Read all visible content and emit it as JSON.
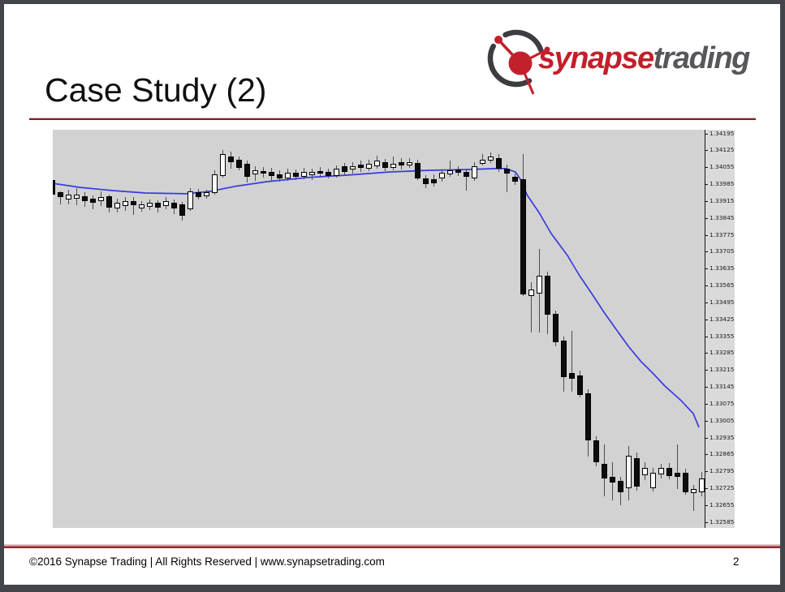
{
  "slide": {
    "title": "Case Study (2)",
    "footer": "©2016 Synapse Trading | All Rights Reserved | www.synapsetrading.com",
    "page_number": "2"
  },
  "logo": {
    "text_primary": "synapse",
    "text_secondary": "trading",
    "primary_color": "#c2202b",
    "secondary_color": "#55575a",
    "ring_color": "#3b3d40"
  },
  "colors": {
    "title_rule_red": "#8e1a1a",
    "footer_rule_red": "#7e1416",
    "plot_background": "#d2d2d2",
    "axis_background": "#dadada",
    "bull_candle": "#fbfbfb",
    "bear_candle": "#0c0c0c",
    "wick": "#4d4d4d",
    "moving_average": "#3a3ae0",
    "border_frame": "#42464b"
  },
  "chart_data": {
    "type": "candlestick",
    "grid": false,
    "ylim": [
      1.32562,
      1.34212
    ],
    "y_axis_ticks": [
      1.34195,
      1.34125,
      1.34055,
      1.33985,
      1.33915,
      1.33845,
      1.33775,
      1.33705,
      1.33635,
      1.33565,
      1.33495,
      1.33425,
      1.33355,
      1.33285,
      1.33215,
      1.33145,
      1.33075,
      1.33005,
      1.32935,
      1.32865,
      1.32795,
      1.32725,
      1.32655,
      1.32585
    ],
    "y_tick_format_decimals": 5,
    "series": [
      {
        "name": "price-candles",
        "type": "candlestick",
        "candles_ohlc": [
          [
            1.34004,
            1.3401,
            1.3392,
            1.33943
          ],
          [
            1.33953,
            1.33956,
            1.33903,
            1.33933
          ],
          [
            1.33923,
            1.33963,
            1.33903,
            1.33943
          ],
          [
            1.33926,
            1.3397,
            1.339,
            1.33943
          ],
          [
            1.33936,
            1.33953,
            1.33893,
            1.33916
          ],
          [
            1.33926,
            1.3394,
            1.33883,
            1.3391
          ],
          [
            1.33916,
            1.33957,
            1.33896,
            1.33933
          ],
          [
            1.33936,
            1.33943,
            1.33869,
            1.33889
          ],
          [
            1.33886,
            1.33926,
            1.33869,
            1.3391
          ],
          [
            1.33896,
            1.33933,
            1.33876,
            1.33916
          ],
          [
            1.33916,
            1.33933,
            1.33859,
            1.339
          ],
          [
            1.33886,
            1.33916,
            1.33873,
            1.33903
          ],
          [
            1.33893,
            1.33923,
            1.33879,
            1.3391
          ],
          [
            1.3391,
            1.3392,
            1.33869,
            1.33889
          ],
          [
            1.33896,
            1.33933,
            1.33883,
            1.33916
          ],
          [
            1.3391,
            1.33923,
            1.33862,
            1.33886
          ],
          [
            1.33903,
            1.33913,
            1.33836,
            1.33856
          ],
          [
            1.33883,
            1.3397,
            1.33876,
            1.33957
          ],
          [
            1.33953,
            1.33967,
            1.33923,
            1.33933
          ],
          [
            1.33936,
            1.33963,
            1.33926,
            1.33953
          ],
          [
            1.3395,
            1.34044,
            1.33943,
            1.34027
          ],
          [
            1.3402,
            1.34128,
            1.34014,
            1.34111
          ],
          [
            1.34101,
            1.34121,
            1.34051,
            1.34078
          ],
          [
            1.34088,
            1.34101,
            1.34044,
            1.34054
          ],
          [
            1.34071,
            1.34084,
            1.33994,
            1.34017
          ],
          [
            1.34027,
            1.34061,
            1.34,
            1.34044
          ],
          [
            1.34041,
            1.34057,
            1.34014,
            1.34031
          ],
          [
            1.34037,
            1.34054,
            1.33997,
            1.3402
          ],
          [
            1.34027,
            1.34044,
            1.33997,
            1.3401
          ],
          [
            1.3401,
            1.34051,
            1.34,
            1.34034
          ],
          [
            1.34034,
            1.34047,
            1.34004,
            1.34017
          ],
          [
            1.34017,
            1.34054,
            1.34007,
            1.34037
          ],
          [
            1.34024,
            1.34051,
            1.34004,
            1.34037
          ],
          [
            1.34041,
            1.34057,
            1.34014,
            1.34031
          ],
          [
            1.34037,
            1.34051,
            1.3401,
            1.3402
          ],
          [
            1.3402,
            1.34064,
            1.34014,
            1.34051
          ],
          [
            1.34061,
            1.34074,
            1.34024,
            1.34037
          ],
          [
            1.34047,
            1.34078,
            1.34031,
            1.34061
          ],
          [
            1.34068,
            1.34084,
            1.34037,
            1.34054
          ],
          [
            1.34051,
            1.34088,
            1.34041,
            1.34071
          ],
          [
            1.34061,
            1.34104,
            1.34051,
            1.34084
          ],
          [
            1.34078,
            1.34091,
            1.34041,
            1.34054
          ],
          [
            1.34054,
            1.34101,
            1.34044,
            1.34071
          ],
          [
            1.34078,
            1.34094,
            1.34047,
            1.34064
          ],
          [
            1.34064,
            1.34094,
            1.34054,
            1.34078
          ],
          [
            1.34074,
            1.34088,
            1.34004,
            1.3401
          ],
          [
            1.3401,
            1.34024,
            1.3397,
            1.33987
          ],
          [
            1.34007,
            1.34027,
            1.33977,
            1.3399
          ],
          [
            1.3401,
            1.34047,
            1.33997,
            1.34034
          ],
          [
            1.34027,
            1.34084,
            1.34017,
            1.34044
          ],
          [
            1.34047,
            1.34061,
            1.3402,
            1.34034
          ],
          [
            1.34037,
            1.34051,
            1.3396,
            1.34017
          ],
          [
            1.3401,
            1.34078,
            1.34,
            1.34061
          ],
          [
            1.34071,
            1.34111,
            1.34064,
            1.34088
          ],
          [
            1.34084,
            1.34118,
            1.34074,
            1.34101
          ],
          [
            1.34094,
            1.34111,
            1.34037,
            1.34051
          ],
          [
            1.34051,
            1.34068,
            1.33953,
            1.34031
          ],
          [
            1.34017,
            1.34031,
            1.33984,
            1.33997
          ],
          [
            1.34007,
            1.34111,
            1.33523,
            1.3353
          ],
          [
            1.33523,
            1.3358,
            1.33372,
            1.3355
          ],
          [
            1.33533,
            1.33718,
            1.33372,
            1.33607
          ],
          [
            1.33607,
            1.33624,
            1.33365,
            1.33446
          ],
          [
            1.33449,
            1.33463,
            1.33315,
            1.33332
          ],
          [
            1.33338,
            1.33355,
            1.33127,
            1.33187
          ],
          [
            1.33204,
            1.33379,
            1.33127,
            1.3318
          ],
          [
            1.33194,
            1.33214,
            1.33103,
            1.33113
          ],
          [
            1.3312,
            1.33137,
            1.32858,
            1.32925
          ],
          [
            1.32925,
            1.32942,
            1.32818,
            1.32834
          ],
          [
            1.32828,
            1.32908,
            1.32693,
            1.32767
          ],
          [
            1.32774,
            1.32834,
            1.32676,
            1.3275
          ],
          [
            1.32757,
            1.32774,
            1.32656,
            1.3271
          ],
          [
            1.32727,
            1.32901,
            1.32676,
            1.32861
          ],
          [
            1.32851,
            1.32874,
            1.32716,
            1.32734
          ],
          [
            1.32781,
            1.32834,
            1.32761,
            1.32811
          ],
          [
            1.32727,
            1.32811,
            1.32713,
            1.32791
          ],
          [
            1.32784,
            1.32828,
            1.32767,
            1.32811
          ],
          [
            1.32811,
            1.32831,
            1.32764,
            1.32777
          ],
          [
            1.32791,
            1.32908,
            1.32723,
            1.32774
          ],
          [
            1.32791,
            1.32808,
            1.327,
            1.3271
          ],
          [
            1.32706,
            1.3274,
            1.32632,
            1.32723
          ],
          [
            1.3271,
            1.32794,
            1.32693,
            1.32767
          ]
        ]
      },
      {
        "name": "moving-average",
        "type": "line",
        "color": "#3a3ae0",
        "points_x_price": [
          [
            0,
            1.3399
          ],
          [
            34,
            1.33973
          ],
          [
            74,
            1.3396
          ],
          [
            114,
            1.3395
          ],
          [
            164,
            1.33947
          ],
          [
            194,
            1.33957
          ],
          [
            224,
            1.33977
          ],
          [
            264,
            1.33997
          ],
          [
            314,
            1.34014
          ],
          [
            364,
            1.34024
          ],
          [
            414,
            1.34037
          ],
          [
            464,
            1.34044
          ],
          [
            509,
            1.34047
          ],
          [
            544,
            1.34051
          ],
          [
            558,
            1.34051
          ],
          [
            570,
            1.34037
          ],
          [
            578,
            1.33997
          ],
          [
            584,
            1.33943
          ],
          [
            599,
            1.33869
          ],
          [
            614,
            1.33782
          ],
          [
            634,
            1.33691
          ],
          [
            649,
            1.33607
          ],
          [
            664,
            1.33533
          ],
          [
            679,
            1.33456
          ],
          [
            694,
            1.33385
          ],
          [
            709,
            1.33315
          ],
          [
            724,
            1.33254
          ],
          [
            739,
            1.33204
          ],
          [
            754,
            1.3315
          ],
          [
            774,
            1.3309
          ],
          [
            789,
            1.33036
          ],
          [
            796,
            1.32979
          ]
        ]
      }
    ]
  }
}
